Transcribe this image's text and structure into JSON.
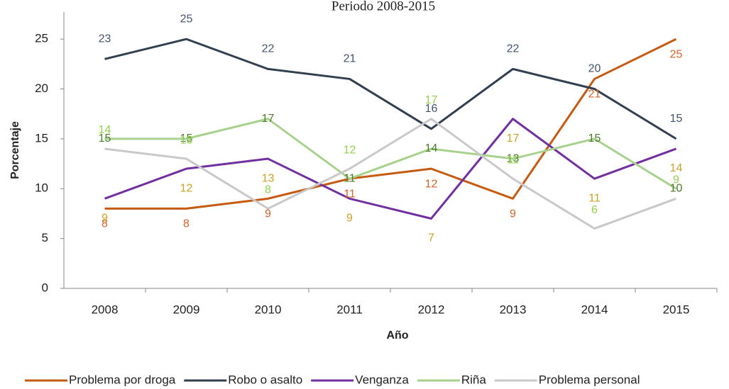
{
  "chart_data": {
    "type": "line",
    "title": "Periodo 2008-2015",
    "x_label": "Año",
    "y_label": "Porcentaje",
    "categories": [
      "2008",
      "2009",
      "2010",
      "2011",
      "2012",
      "2013",
      "2014",
      "2015"
    ],
    "ylim": [
      0,
      27
    ],
    "yticks": [
      0,
      5,
      10,
      15,
      20,
      25
    ],
    "legend": "bottom",
    "series": [
      {
        "name": "Problema por droga",
        "color": "#c55a11",
        "label_color": "#d0632a",
        "values": [
          8,
          8,
          9,
          11,
          12,
          9,
          21,
          25
        ]
      },
      {
        "name": "Robo o asalto",
        "color": "#323f4f",
        "label_color": "#44546a",
        "values": [
          23,
          25,
          22,
          21,
          16,
          22,
          20,
          15
        ]
      },
      {
        "name": "Venganza",
        "color": "#7030a0",
        "label_color": "#c9a227",
        "values": [
          9,
          12,
          13,
          9,
          7,
          17,
          11,
          14
        ]
      },
      {
        "name": "Riña",
        "color": "#a9d18e",
        "label_color": "#4e7a2e",
        "values": [
          15,
          15,
          17,
          11,
          14,
          13,
          15,
          10
        ]
      },
      {
        "name": "Problema personal",
        "color": "#c9c9c9",
        "label_color": "#92d050",
        "values": [
          14,
          13,
          8,
          12,
          17,
          11,
          6,
          9
        ]
      }
    ]
  }
}
